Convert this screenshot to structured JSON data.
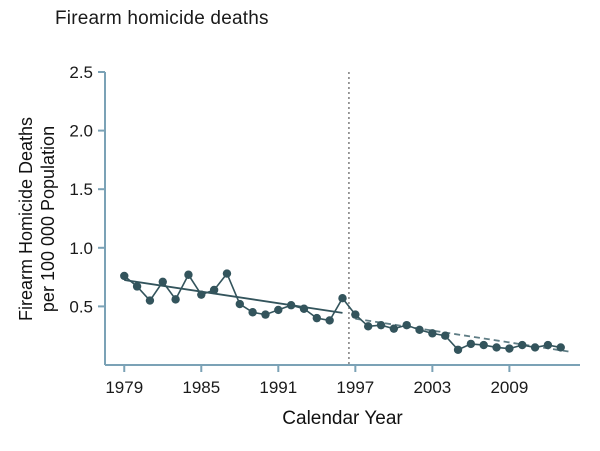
{
  "header": {
    "title": "Firearm homicide deaths"
  },
  "axes": {
    "x_label": "Calendar Year",
    "y_label_line1": "Firearm Homicide Deaths",
    "y_label_line2": "per 100 000 Population"
  },
  "chart_data": {
    "type": "line",
    "title": "Firearm homicide deaths",
    "xlabel": "Calendar Year",
    "ylabel": "Firearm Homicide Deaths per 100 000 Population",
    "xlim": [
      1977.5,
      2014.5
    ],
    "ylim": [
      0,
      2.5
    ],
    "xticks": [
      1979,
      1985,
      1991,
      1997,
      2003,
      2009
    ],
    "yticks": [
      0.5,
      1.0,
      1.5,
      2.0,
      2.5
    ],
    "grid": false,
    "legend": "none",
    "reference_line_x": 1996.5,
    "reference_line_meaning": "dotted vertical line between 1996 and 1997",
    "x": [
      1979,
      1980,
      1981,
      1982,
      1983,
      1984,
      1985,
      1986,
      1987,
      1988,
      1989,
      1990,
      1991,
      1992,
      1993,
      1994,
      1995,
      1996,
      1997,
      1998,
      1999,
      2000,
      2001,
      2002,
      2003,
      2004,
      2005,
      2006,
      2007,
      2008,
      2009,
      2010,
      2011,
      2012,
      2013
    ],
    "series": [
      {
        "name": "Firearm homicide deaths per 100 000 population",
        "values": [
          0.76,
          0.67,
          0.55,
          0.71,
          0.56,
          0.77,
          0.6,
          0.64,
          0.78,
          0.52,
          0.45,
          0.43,
          0.47,
          0.51,
          0.48,
          0.4,
          0.38,
          0.57,
          0.43,
          0.33,
          0.34,
          0.31,
          0.34,
          0.3,
          0.27,
          0.25,
          0.13,
          0.18,
          0.17,
          0.15,
          0.14,
          0.17,
          0.15,
          0.17,
          0.15
        ]
      }
    ],
    "trend_pre": {
      "x": [
        1979,
        1996
      ],
      "y": [
        0.725,
        0.445
      ],
      "style": "solid"
    },
    "trend_post": {
      "x": [
        1997,
        2013.6
      ],
      "y": [
        0.395,
        0.115
      ],
      "style": "dashed"
    },
    "colors": {
      "points": "#33545c",
      "data_line": "#33545c",
      "axis": "#7ba2b6",
      "trend_pre": "#33545c",
      "trend_post": "#5f7d85",
      "reference": "#7d7d7d",
      "text": "#1a1a1a"
    }
  }
}
